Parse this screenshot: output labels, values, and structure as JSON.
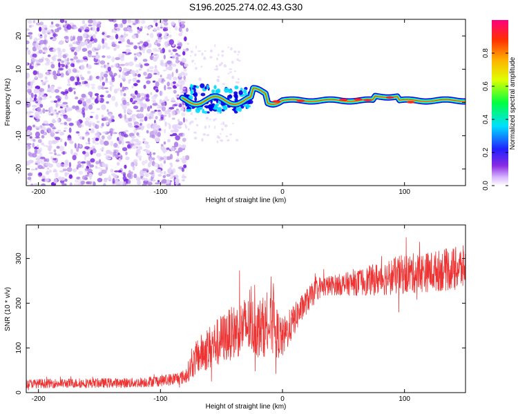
{
  "chart_data": [
    {
      "type": "heatmap",
      "title": "S196.2025.274.02.43.G30",
      "xlabel": "Height of straight line (km)",
      "ylabel": "Frequency (Hz)",
      "xlim": [
        -210,
        150
      ],
      "ylim": [
        -25,
        25
      ],
      "xticks": [
        -200,
        -100,
        0,
        100
      ],
      "yticks": [
        -20,
        -10,
        0,
        10,
        20
      ],
      "colorbar": {
        "label": "Normalized spectral amplitude",
        "range": [
          0,
          1
        ],
        "ticks": [
          "0.0",
          "0.2",
          "0.4",
          "0.6",
          "0.8"
        ]
      },
      "colors": {
        "noise_light": "#e2d2f8",
        "noise_mid": "#b48ae8",
        "noise_dark": "#7a28e0",
        "line_core": "#ff2020",
        "line_edge": "#0000e0"
      },
      "notes": "Diffuse low-amplitude noise for heights -210 to -80 km; a narrow high-amplitude line near 0-1 Hz from about -80 km to 150 km"
    },
    {
      "type": "line",
      "xlabel": "Height of straight line (km)",
      "ylabel": "SNR (10 * v/v)",
      "xlim": [
        -210,
        150
      ],
      "ylim": [
        0,
        375
      ],
      "xticks": [
        -200,
        -100,
        0,
        100
      ],
      "yticks": [
        0,
        100,
        200,
        300
      ],
      "color": "#ee3333",
      "series": [
        {
          "name": "SNR",
          "envelope_x": [
            -210,
            -120,
            -95,
            -80,
            -70,
            -60,
            -50,
            -40,
            -30,
            -20,
            -10,
            0,
            10,
            20,
            30,
            40,
            60,
            80,
            100,
            120,
            150
          ],
          "envelope_y": [
            20,
            22,
            28,
            35,
            80,
            100,
            120,
            135,
            150,
            145,
            150,
            120,
            165,
            205,
            235,
            240,
            245,
            255,
            265,
            270,
            280
          ],
          "spread": [
            10,
            11,
            13,
            16,
            40,
            50,
            55,
            60,
            65,
            65,
            70,
            45,
            35,
            28,
            25,
            22,
            28,
            38,
            45,
            45,
            50
          ]
        }
      ]
    }
  ]
}
